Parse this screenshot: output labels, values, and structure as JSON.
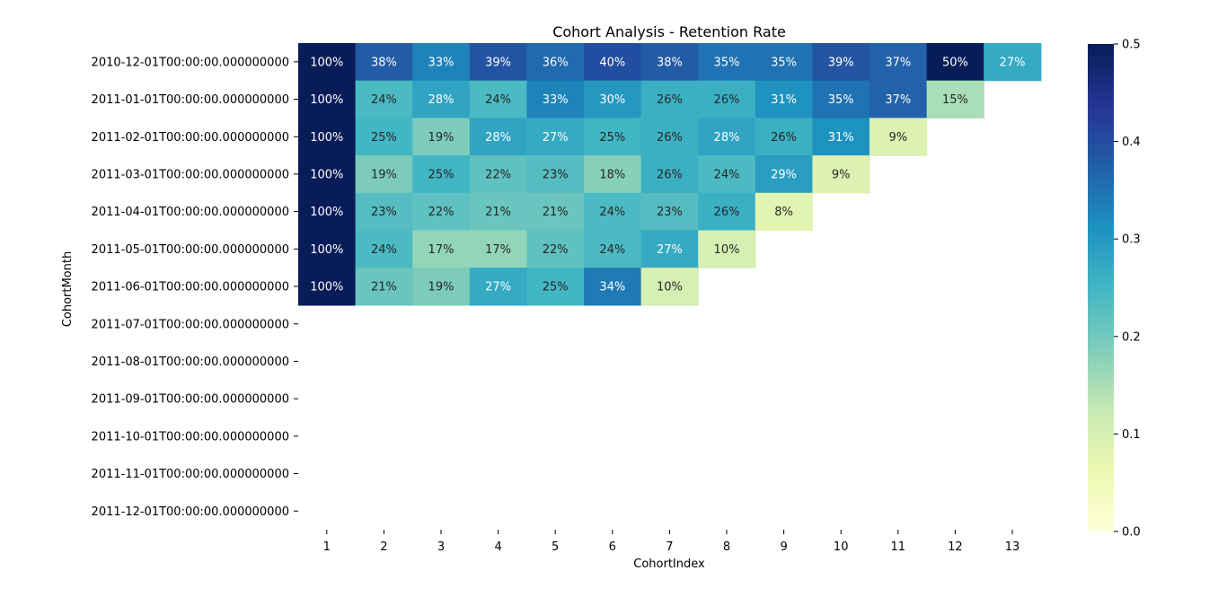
{
  "chart_data": {
    "type": "heatmap",
    "title": "Cohort Analysis - Retention Rate",
    "xlabel": "CohortIndex",
    "ylabel": "CohortMonth",
    "x_categories": [
      "1",
      "2",
      "3",
      "4",
      "5",
      "6",
      "7",
      "8",
      "9",
      "10",
      "11",
      "12",
      "13"
    ],
    "y_categories": [
      "2010-12-01T00:00:00.000000000",
      "2011-01-01T00:00:00.000000000",
      "2011-02-01T00:00:00.000000000",
      "2011-03-01T00:00:00.000000000",
      "2011-04-01T00:00:00.000000000",
      "2011-05-01T00:00:00.000000000",
      "2011-06-01T00:00:00.000000000",
      "2011-07-01T00:00:00.000000000",
      "2011-08-01T00:00:00.000000000",
      "2011-09-01T00:00:00.000000000",
      "2011-10-01T00:00:00.000000000",
      "2011-11-01T00:00:00.000000000",
      "2011-12-01T00:00:00.000000000"
    ],
    "values": [
      [
        1.0,
        0.38,
        0.33,
        0.39,
        0.36,
        0.4,
        0.38,
        0.35,
        0.35,
        0.39,
        0.37,
        0.5,
        0.27
      ],
      [
        1.0,
        0.24,
        0.28,
        0.24,
        0.33,
        0.3,
        0.26,
        0.26,
        0.31,
        0.35,
        0.37,
        0.15,
        null
      ],
      [
        1.0,
        0.25,
        0.19,
        0.28,
        0.27,
        0.25,
        0.26,
        0.28,
        0.26,
        0.31,
        0.09,
        null,
        null
      ],
      [
        1.0,
        0.19,
        0.25,
        0.22,
        0.23,
        0.18,
        0.26,
        0.24,
        0.29,
        0.09,
        null,
        null,
        null
      ],
      [
        1.0,
        0.23,
        0.22,
        0.21,
        0.21,
        0.24,
        0.23,
        0.26,
        0.08,
        null,
        null,
        null,
        null
      ],
      [
        1.0,
        0.24,
        0.17,
        0.17,
        0.22,
        0.24,
        0.27,
        0.1,
        null,
        null,
        null,
        null,
        null
      ],
      [
        1.0,
        0.21,
        0.19,
        0.27,
        0.25,
        0.34,
        0.1,
        null,
        null,
        null,
        null,
        null,
        null
      ],
      [
        null,
        null,
        null,
        null,
        null,
        null,
        null,
        null,
        null,
        null,
        null,
        null,
        null
      ],
      [
        null,
        null,
        null,
        null,
        null,
        null,
        null,
        null,
        null,
        null,
        null,
        null,
        null
      ],
      [
        null,
        null,
        null,
        null,
        null,
        null,
        null,
        null,
        null,
        null,
        null,
        null,
        null
      ],
      [
        null,
        null,
        null,
        null,
        null,
        null,
        null,
        null,
        null,
        null,
        null,
        null,
        null
      ],
      [
        null,
        null,
        null,
        null,
        null,
        null,
        null,
        null,
        null,
        null,
        null,
        null,
        null
      ],
      [
        null,
        null,
        null,
        null,
        null,
        null,
        null,
        null,
        null,
        null,
        null,
        null,
        null
      ]
    ],
    "cell_labels": [
      [
        "100%",
        "38%",
        "33%",
        "39%",
        "36%",
        "40%",
        "38%",
        "35%",
        "35%",
        "39%",
        "37%",
        "50%",
        "27%"
      ],
      [
        "100%",
        "24%",
        "28%",
        "24%",
        "33%",
        "30%",
        "26%",
        "26%",
        "31%",
        "35%",
        "37%",
        "15%",
        ""
      ],
      [
        "100%",
        "25%",
        "19%",
        "28%",
        "27%",
        "25%",
        "26%",
        "28%",
        "26%",
        "31%",
        "9%",
        "",
        ""
      ],
      [
        "100%",
        "19%",
        "25%",
        "22%",
        "23%",
        "18%",
        "26%",
        "24%",
        "29%",
        "9%",
        "",
        "",
        ""
      ],
      [
        "100%",
        "23%",
        "22%",
        "21%",
        "21%",
        "24%",
        "23%",
        "26%",
        "8%",
        "",
        "",
        "",
        ""
      ],
      [
        "100%",
        "24%",
        "17%",
        "17%",
        "22%",
        "24%",
        "27%",
        "10%",
        "",
        "",
        "",
        "",
        ""
      ],
      [
        "100%",
        "21%",
        "19%",
        "27%",
        "25%",
        "34%",
        "10%",
        "",
        "",
        "",
        "",
        "",
        ""
      ],
      [
        "",
        "",
        "",
        "",
        "",
        "",
        "",
        "",
        "",
        "",
        "",
        "",
        ""
      ],
      [
        "",
        "",
        "",
        "",
        "",
        "",
        "",
        "",
        "",
        "",
        "",
        "",
        ""
      ],
      [
        "",
        "",
        "",
        "",
        "",
        "",
        "",
        "",
        "",
        "",
        "",
        "",
        ""
      ],
      [
        "",
        "",
        "",
        "",
        "",
        "",
        "",
        "",
        "",
        "",
        "",
        "",
        ""
      ],
      [
        "",
        "",
        "",
        "",
        "",
        "",
        "",
        "",
        "",
        "",
        "",
        "",
        ""
      ],
      [
        "",
        "",
        "",
        "",
        "",
        "",
        "",
        "",
        "",
        "",
        "",
        "",
        ""
      ]
    ],
    "vmin": 0.0,
    "vmax": 0.5,
    "colormap": "YlGnBu",
    "colorbar_ticks": [
      "0.0",
      "0.1",
      "0.2",
      "0.3",
      "0.4",
      "0.5"
    ],
    "colorbar_tick_values": [
      0.0,
      0.1,
      0.2,
      0.3,
      0.4,
      0.5
    ],
    "grid": false
  }
}
